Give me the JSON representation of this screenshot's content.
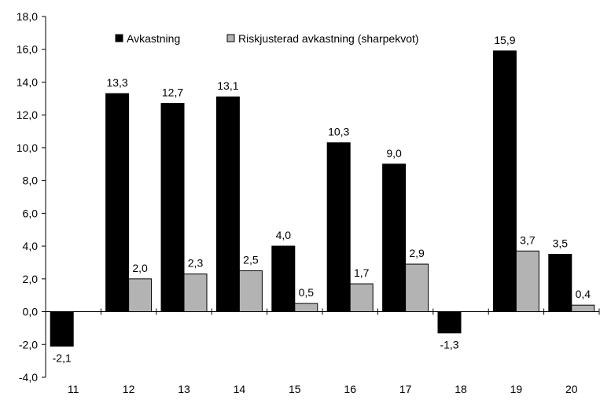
{
  "chart_data": {
    "type": "bar",
    "title": "",
    "xlabel": "",
    "ylabel": "",
    "categories": [
      "11",
      "12",
      "13",
      "14",
      "15",
      "16",
      "17",
      "18",
      "19",
      "20"
    ],
    "series": [
      {
        "name": "Avkastning",
        "color": "#000000",
        "values": [
          -2.1,
          13.3,
          12.7,
          13.1,
          4.0,
          10.3,
          9.0,
          -1.3,
          15.9,
          3.5
        ],
        "labels": [
          "-2,1",
          "13,3",
          "12,7",
          "13,1",
          "4,0",
          "10,3",
          "9,0",
          "-1,3",
          "15,9",
          "3,5"
        ]
      },
      {
        "name": "Riskjusterad avkastning (sharpekvot)",
        "color": "#b3b3b3",
        "values": [
          null,
          2.0,
          2.3,
          2.5,
          0.5,
          1.7,
          2.9,
          null,
          3.7,
          0.4
        ],
        "labels": [
          "",
          "2,0",
          "2,3",
          "2,5",
          "0,5",
          "1,7",
          "2,9",
          "",
          "3,7",
          "0,4"
        ]
      }
    ],
    "ylim": [
      -4.0,
      18.0
    ],
    "yticks": [
      -4.0,
      -2.0,
      0.0,
      2.0,
      4.0,
      6.0,
      8.0,
      10.0,
      12.0,
      14.0,
      16.0,
      18.0
    ],
    "ytick_labels": [
      "-4,0",
      "-2,0",
      "0,0",
      "2,0",
      "4,0",
      "6,0",
      "8,0",
      "10,0",
      "12,0",
      "14,0",
      "16,0",
      "18,0"
    ],
    "grid": false,
    "legend": "top"
  }
}
